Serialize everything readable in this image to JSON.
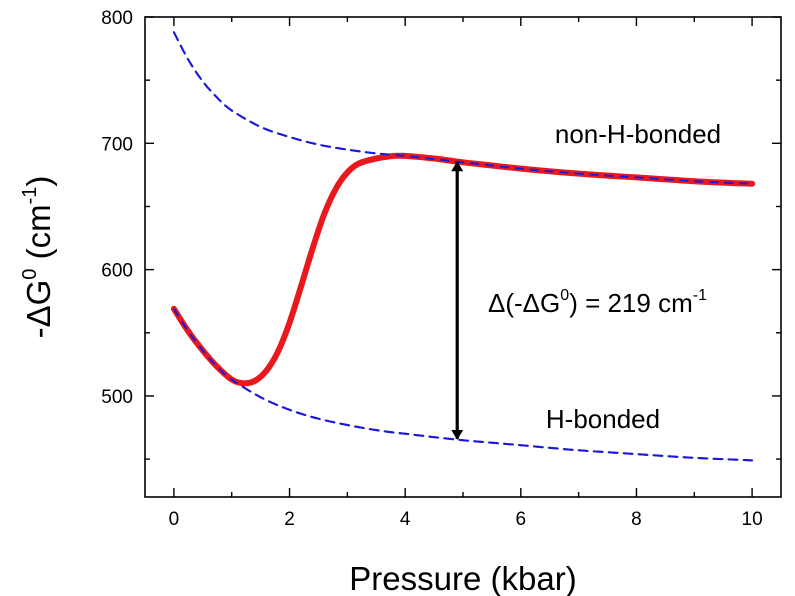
{
  "chart_data": {
    "type": "line",
    "xlabel": "Pressure (kbar)",
    "ylabel_parts": {
      "prefix": "-ΔG",
      "sup1": "0",
      "mid": " (cm",
      "sup2": "-1",
      "suffix": ")"
    },
    "xlim": [
      -0.5,
      10.5
    ],
    "ylim": [
      420,
      800
    ],
    "xticks": [
      0,
      2,
      4,
      6,
      8,
      10
    ],
    "xtick_labels": [
      "0",
      "2",
      "4",
      "6",
      "8",
      "10"
    ],
    "yticks": [
      500,
      600,
      700,
      800
    ],
    "ytick_labels": [
      "500",
      "600",
      "700",
      "800"
    ],
    "grid": false,
    "legend": "none",
    "series": [
      {
        "style": "dashed",
        "color": "#1a1adb",
        "x": [
          0,
          0.25,
          0.5,
          0.75,
          1,
          1.5,
          2,
          2.5,
          3,
          3.5,
          4,
          5,
          6,
          7,
          8,
          9,
          10
        ],
        "y": [
          788,
          766,
          749,
          736,
          726,
          713,
          705,
          699,
          695,
          692,
          690,
          685,
          680,
          676,
          673,
          670,
          668
        ]
      },
      {
        "style": "dashed",
        "color": "#1a1adb",
        "x": [
          0,
          0.25,
          0.5,
          0.75,
          1,
          1.5,
          2,
          2.5,
          3,
          3.5,
          4,
          5,
          6,
          7,
          8,
          9,
          10
        ],
        "y": [
          569,
          551,
          536,
          523,
          513,
          499,
          489,
          482,
          477,
          473,
          470,
          465,
          461,
          457,
          454,
          451,
          449
        ]
      },
      {
        "style": "solid",
        "color": "#e8181c",
        "x": [
          0,
          0.25,
          0.5,
          0.75,
          1,
          1.2,
          1.4,
          1.6,
          1.8,
          2,
          2.2,
          2.4,
          2.6,
          2.8,
          3,
          3.2,
          3.5,
          3.8,
          4,
          4.5,
          5,
          6,
          7,
          8,
          9,
          10
        ],
        "y": [
          569,
          551,
          536,
          523,
          513,
          510,
          512,
          520,
          535,
          558,
          587,
          617,
          644,
          664,
          677,
          684,
          688,
          690,
          690,
          688,
          685,
          680,
          676,
          673,
          670,
          668
        ]
      }
    ],
    "annotations": {
      "upper_label": "non-H-bonded",
      "lower_label": "H-bonded",
      "delta_parts": {
        "prefix": "Δ(-ΔG",
        "sup1": "0",
        "mid": ") = 219 cm",
        "sup2": "-1"
      },
      "arrow": {
        "x": 4.9,
        "y_from": 466,
        "y_to": 685
      }
    }
  }
}
